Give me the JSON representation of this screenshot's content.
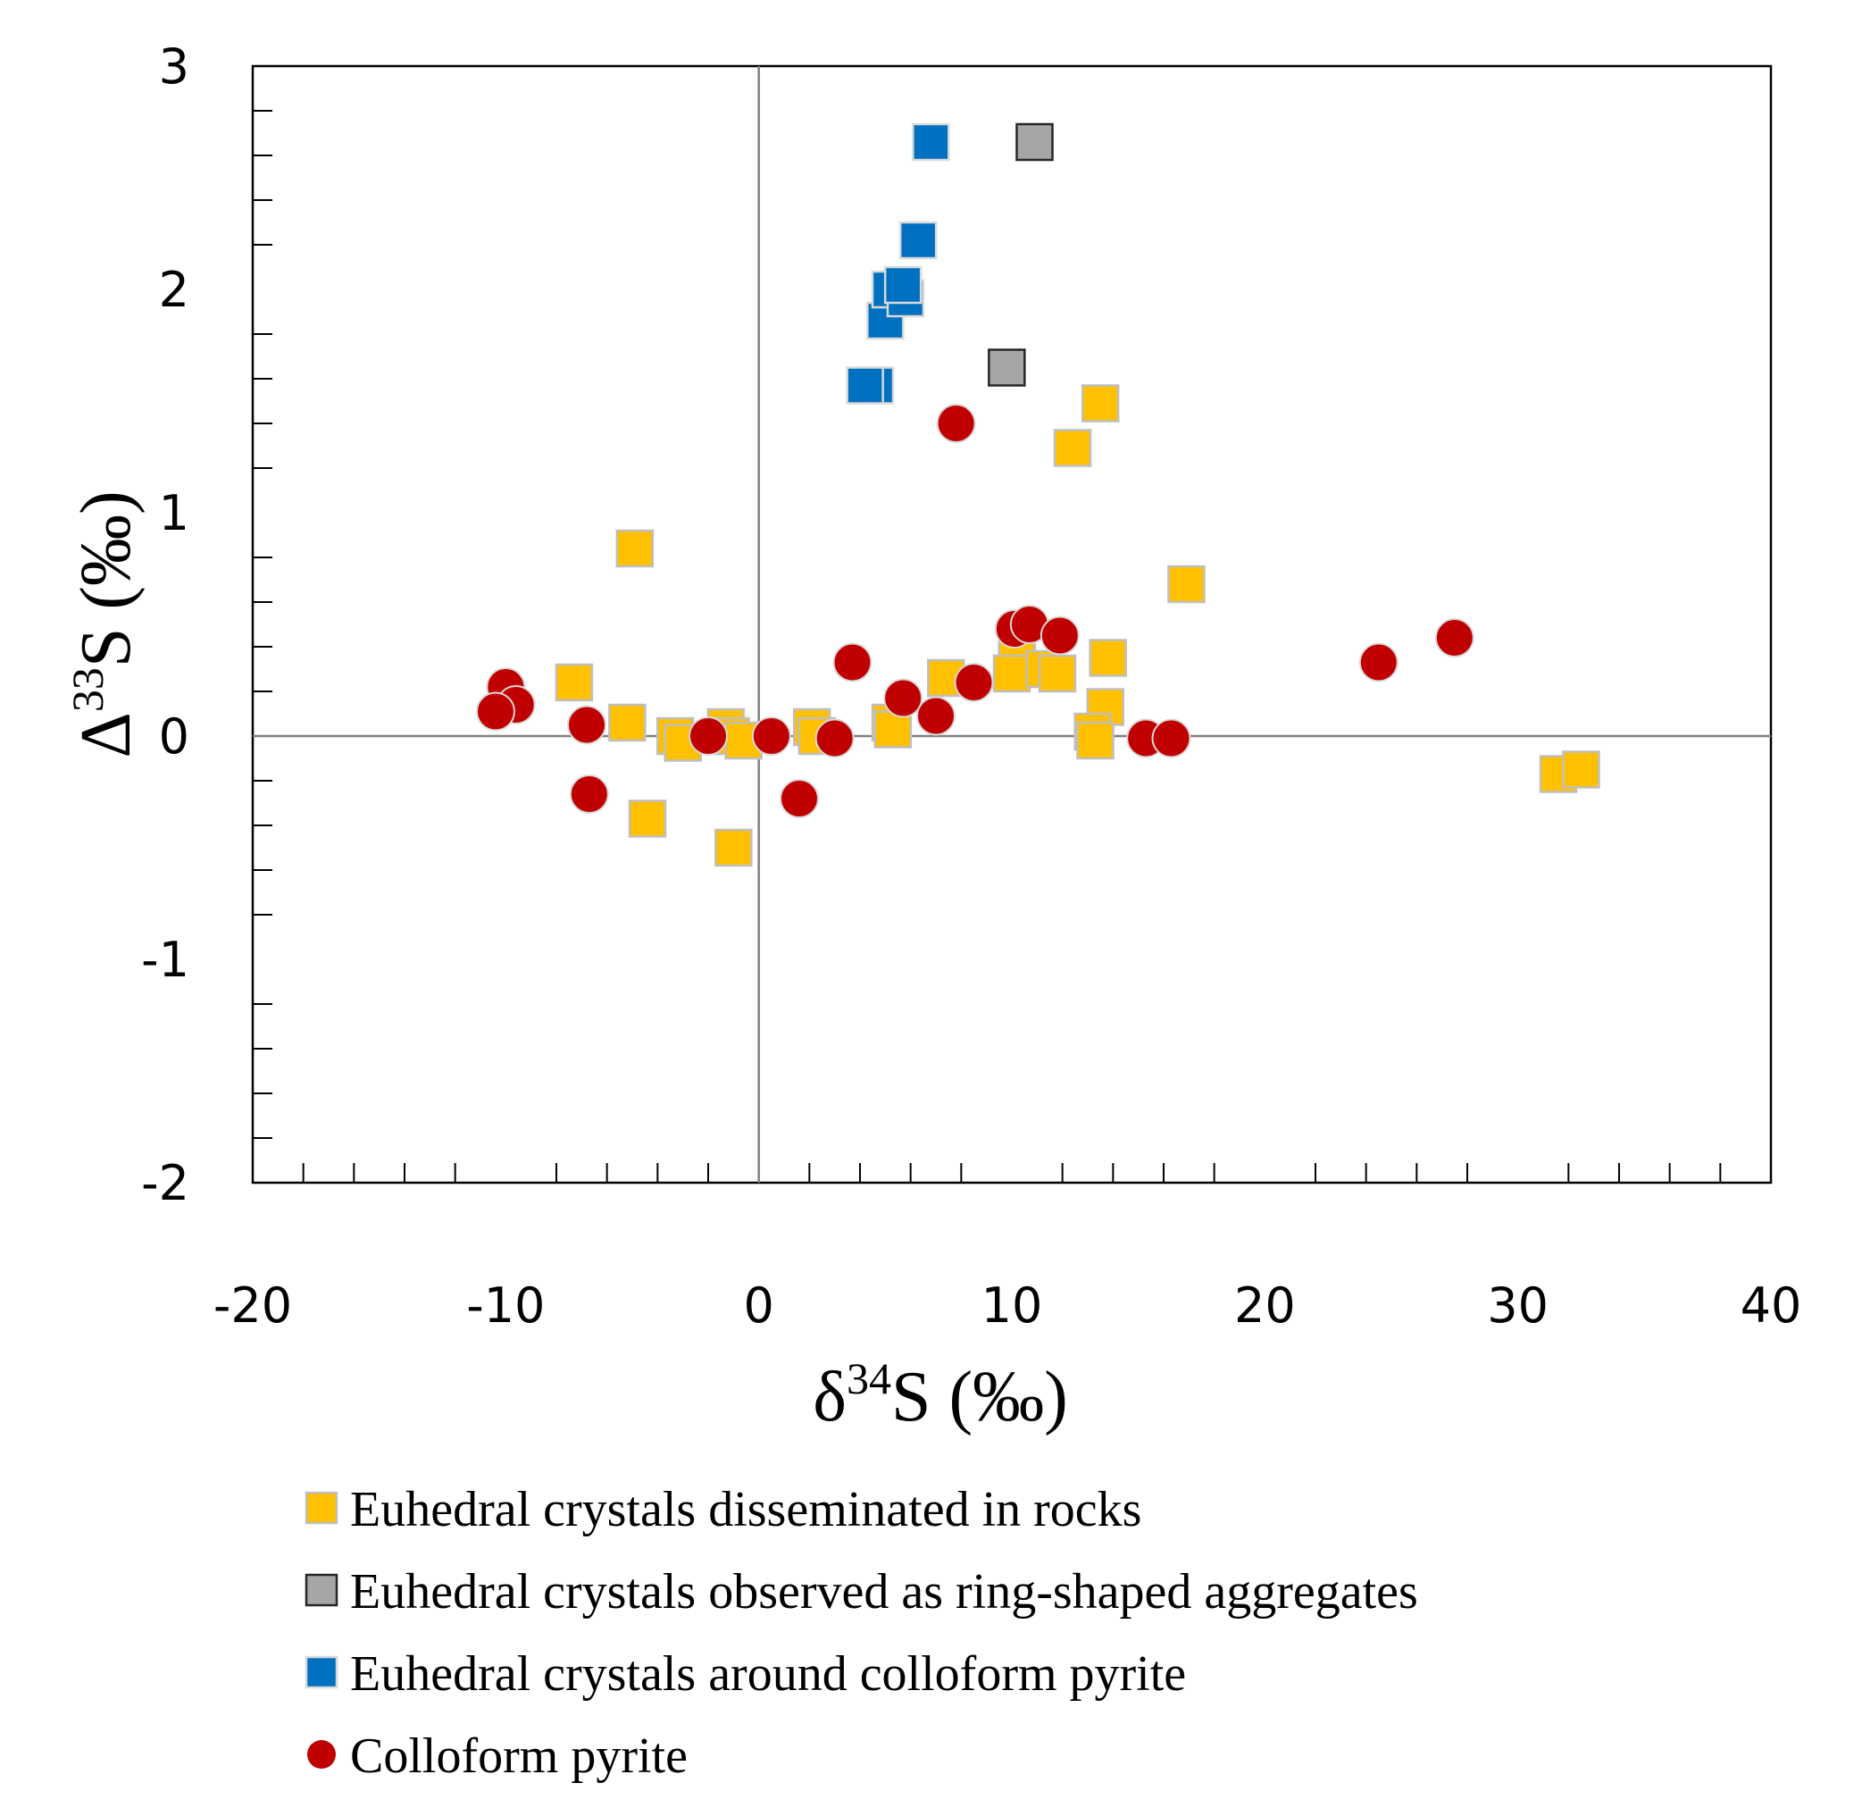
{
  "chart_data": {
    "type": "scatter",
    "title": "",
    "xlabel": {
      "prefix": "δ",
      "sup": "34",
      "suffix": "S (‰)"
    },
    "ylabel": {
      "prefix": "Δ",
      "sup": "33",
      "suffix": "S (‰)"
    },
    "xlim": [
      -20,
      40
    ],
    "ylim": [
      -2,
      3
    ],
    "xticks": [
      -20,
      -10,
      0,
      10,
      20,
      30,
      40
    ],
    "yticks": [
      -2,
      -1,
      0,
      1,
      2,
      3
    ],
    "x_minor_step": 2,
    "y_minor_step": 0.2,
    "reference_lines": {
      "x": 0,
      "y": 0
    },
    "legend_position": "bottom",
    "series": [
      {
        "name": "Euhedral crystals disseminated in rocks",
        "marker": "square",
        "color": "#FFC000",
        "edge": "#BFBFBF",
        "points": [
          [
            -7.3,
            0.24
          ],
          [
            -5.2,
            0.06
          ],
          [
            -4.9,
            0.84
          ],
          [
            -3.3,
            0.0
          ],
          [
            -3.0,
            -0.03
          ],
          [
            -4.4,
            -0.37
          ],
          [
            -1.3,
            0.04
          ],
          [
            -1.1,
            0.0
          ],
          [
            -0.6,
            -0.02
          ],
          [
            -1.0,
            -0.5
          ],
          [
            2.1,
            0.04
          ],
          [
            2.3,
            0.0
          ],
          [
            5.2,
            0.06
          ],
          [
            5.3,
            0.03
          ],
          [
            7.4,
            0.26
          ],
          [
            10.2,
            0.35
          ],
          [
            10.0,
            0.28
          ],
          [
            11.3,
            0.3
          ],
          [
            11.8,
            0.28
          ],
          [
            12.4,
            1.29
          ],
          [
            13.5,
            1.49
          ],
          [
            13.8,
            0.35
          ],
          [
            13.7,
            0.13
          ],
          [
            13.2,
            0.02
          ],
          [
            13.3,
            -0.02
          ],
          [
            16.9,
            0.68
          ],
          [
            31.6,
            -0.17
          ],
          [
            32.5,
            -0.15
          ]
        ]
      },
      {
        "name": "Euhedral crystals observed as ring-shaped aggregates",
        "marker": "square",
        "color": "#A6A6A6",
        "edge": "#262626",
        "points": [
          [
            9.8,
            1.65
          ],
          [
            10.9,
            2.66
          ]
        ]
      },
      {
        "name": "Euhedral crystals around colloform pyrite",
        "marker": "square",
        "color": "#0070C0",
        "edge": "#D9D9D9",
        "points": [
          [
            4.6,
            1.57
          ],
          [
            4.2,
            1.57
          ],
          [
            5.0,
            1.86
          ],
          [
            5.2,
            2.0
          ],
          [
            5.8,
            1.96
          ],
          [
            5.7,
            2.02
          ],
          [
            6.3,
            2.22
          ],
          [
            6.8,
            2.66
          ]
        ]
      },
      {
        "name": "Colloform pyrite",
        "marker": "circle",
        "color": "#C00000",
        "edge": "#D9D9D9",
        "points": [
          [
            -10.0,
            0.22
          ],
          [
            -9.6,
            0.14
          ],
          [
            -10.4,
            0.11
          ],
          [
            -6.8,
            0.05
          ],
          [
            -6.7,
            -0.26
          ],
          [
            -2.0,
            0.0
          ],
          [
            0.5,
            0.0
          ],
          [
            3.0,
            -0.01
          ],
          [
            1.6,
            -0.28
          ],
          [
            3.7,
            0.33
          ],
          [
            5.7,
            0.17
          ],
          [
            7.0,
            0.09
          ],
          [
            8.5,
            0.24
          ],
          [
            7.8,
            1.4
          ],
          [
            10.1,
            0.48
          ],
          [
            10.7,
            0.5
          ],
          [
            11.9,
            0.45
          ],
          [
            15.3,
            -0.01
          ],
          [
            16.3,
            -0.01
          ],
          [
            24.5,
            0.33
          ],
          [
            27.5,
            0.44
          ]
        ]
      }
    ]
  }
}
